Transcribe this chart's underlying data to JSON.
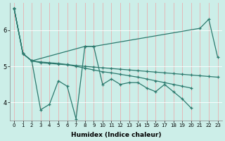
{
  "xlabel": "Humidex (Indice chaleur)",
  "background_color": "#cceee8",
  "line_color": "#2d7a6e",
  "xlim": [
    -0.5,
    23.5
  ],
  "ylim": [
    3.5,
    6.75
  ],
  "yticks": [
    4,
    5,
    6
  ],
  "xticks": [
    0,
    1,
    2,
    3,
    4,
    5,
    6,
    7,
    8,
    9,
    10,
    11,
    12,
    13,
    14,
    15,
    16,
    17,
    18,
    19,
    20,
    21,
    22,
    23
  ],
  "series1_x": [
    0,
    1,
    2,
    3,
    4,
    5,
    6,
    7,
    8,
    9,
    10,
    11,
    12,
    13,
    14,
    15,
    16,
    17,
    18,
    19,
    20
  ],
  "series1_y": [
    6.6,
    5.35,
    5.15,
    3.8,
    3.95,
    4.6,
    4.45,
    3.55,
    5.55,
    5.55,
    4.5,
    4.65,
    4.5,
    4.55,
    4.55,
    4.4,
    4.3,
    4.5,
    4.3,
    4.1,
    3.85
  ],
  "series2_x": [
    0,
    1,
    2,
    8,
    9,
    21,
    22,
    23
  ],
  "series2_y": [
    6.6,
    5.35,
    5.15,
    5.55,
    5.55,
    6.05,
    6.3,
    5.25
  ],
  "series3_x": [
    0,
    1,
    2,
    3,
    4,
    5,
    6,
    7,
    8,
    9,
    10,
    11,
    12,
    13,
    14,
    15,
    16,
    17,
    18,
    19,
    20,
    21,
    22,
    23
  ],
  "series3_y": [
    6.6,
    5.35,
    5.15,
    5.12,
    5.1,
    5.08,
    5.05,
    5.02,
    5.0,
    4.98,
    4.96,
    4.94,
    4.92,
    4.9,
    4.88,
    4.86,
    4.84,
    4.82,
    4.8,
    4.78,
    4.76,
    4.74,
    4.72,
    4.7
  ],
  "series4_x": [
    0,
    1,
    2,
    3,
    4,
    5,
    6,
    7,
    8,
    9,
    10,
    11,
    12,
    13,
    14,
    15,
    16,
    17,
    18,
    19,
    20
  ],
  "series4_y": [
    6.6,
    5.35,
    5.15,
    5.1,
    5.08,
    5.06,
    5.04,
    5.0,
    4.95,
    4.9,
    4.85,
    4.82,
    4.78,
    4.74,
    4.7,
    4.65,
    4.6,
    4.55,
    4.5,
    4.45,
    4.4
  ]
}
